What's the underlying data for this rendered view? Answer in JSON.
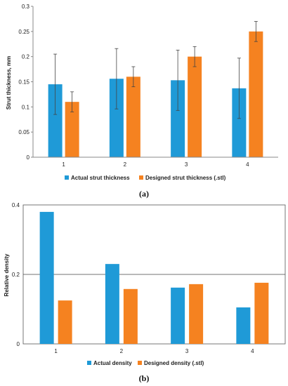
{
  "chart_data": [
    {
      "type": "bar",
      "panel_label": "(a)",
      "categories": [
        "1",
        "2",
        "3",
        "4"
      ],
      "ylabel": "Strut thickness, mm",
      "ylim": [
        0,
        0.3
      ],
      "yticks": [
        "0",
        "0.05",
        "0.1",
        "0.15",
        "0.2",
        "0.25",
        "0.3"
      ],
      "grid": false,
      "legend_position": "bottom",
      "series": [
        {
          "name": "Actual strut thickness",
          "color": "#1f9ad7",
          "values": [
            0.145,
            0.156,
            0.153,
            0.137
          ],
          "errors": [
            0.06,
            0.06,
            0.06,
            0.06
          ]
        },
        {
          "name": "Designed strut thickness (.stl)",
          "color": "#f58220",
          "values": [
            0.11,
            0.16,
            0.2,
            0.25
          ],
          "errors": [
            0.02,
            0.02,
            0.02,
            0.02
          ]
        }
      ]
    },
    {
      "type": "bar",
      "panel_label": "(b)",
      "categories": [
        "1",
        "2",
        "3",
        "4"
      ],
      "ylabel": "Relative density",
      "ylim": [
        0,
        0.4
      ],
      "yticks": [
        "0",
        "0.2",
        "0.4"
      ],
      "grid": true,
      "legend_position": "bottom",
      "series": [
        {
          "name": "Actual density",
          "color": "#1f9ad7",
          "values": [
            0.38,
            0.23,
            0.162,
            0.105
          ]
        },
        {
          "name": "Designed density (.stl)",
          "color": "#f58220",
          "values": [
            0.125,
            0.158,
            0.172,
            0.176
          ]
        }
      ]
    }
  ]
}
